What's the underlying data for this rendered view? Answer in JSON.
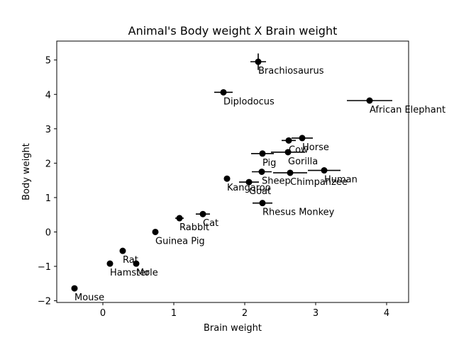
{
  "chart_data": {
    "type": "scatter",
    "title": "Animal's Body weight X Brain weight",
    "xlabel": "Brain weight",
    "ylabel": "Body weight",
    "xlim": [
      -0.65,
      4.31
    ],
    "ylim": [
      -2.05,
      5.55
    ],
    "xticks": [
      0,
      1,
      2,
      3,
      4
    ],
    "yticks": [
      -2,
      -1,
      0,
      1,
      2,
      3,
      4,
      5
    ],
    "grid": false,
    "marker_color": "#000000",
    "points": [
      {
        "label": "Brachiosaurus",
        "x": 2.19,
        "y": 4.95,
        "xerr": 0.11,
        "yerr": 0.24
      },
      {
        "label": "Diplodocus",
        "x": 1.7,
        "y": 4.06,
        "xerr": 0.13,
        "yerr": 0.08
      },
      {
        "label": "African Elephant",
        "x": 3.76,
        "y": 3.82,
        "xerr": 0.32,
        "yerr": 0.06
      },
      {
        "label": "Horse",
        "x": 2.81,
        "y": 2.73,
        "xerr": 0.15,
        "yerr": 0.05
      },
      {
        "label": "Cow",
        "x": 2.62,
        "y": 2.66,
        "xerr": 0.1,
        "yerr": 0.05
      },
      {
        "label": "Pig",
        "x": 2.25,
        "y": 2.28,
        "xerr": 0.16,
        "yerr": 0.03
      },
      {
        "label": "Gorilla",
        "x": 2.61,
        "y": 2.32,
        "xerr": 0.24,
        "yerr": 0.03
      },
      {
        "label": "Sheep",
        "x": 2.24,
        "y": 1.75,
        "xerr": 0.14,
        "yerr": 0.03
      },
      {
        "label": "Chimpanzee",
        "x": 2.64,
        "y": 1.72,
        "xerr": 0.24,
        "yerr": 0.03
      },
      {
        "label": "Human",
        "x": 3.12,
        "y": 1.79,
        "xerr": 0.23,
        "yerr": 0.03
      },
      {
        "label": "Kangaroo",
        "x": 1.75,
        "y": 1.55,
        "xerr": 0.03,
        "yerr": 0.03
      },
      {
        "label": "Goat",
        "x": 2.06,
        "y": 1.45,
        "xerr": 0.14,
        "yerr": 0.03
      },
      {
        "label": "Rhesus Monkey",
        "x": 2.25,
        "y": 0.84,
        "xerr": 0.14,
        "yerr": 0.03
      },
      {
        "label": "Rabbit",
        "x": 1.08,
        "y": 0.4,
        "xerr": 0.06,
        "yerr": 0.03
      },
      {
        "label": "Cat",
        "x": 1.41,
        "y": 0.52,
        "xerr": 0.1,
        "yerr": 0.03
      },
      {
        "label": "Guinea Pig",
        "x": 0.74,
        "y": 0.0,
        "xerr": 0.0,
        "yerr": 0.0
      },
      {
        "label": "Rat",
        "x": 0.28,
        "y": -0.55,
        "xerr": 0.0,
        "yerr": 0.0
      },
      {
        "label": "Hamster",
        "x": 0.1,
        "y": -0.92,
        "xerr": 0.0,
        "yerr": 0.0
      },
      {
        "label": "Mole",
        "x": 0.47,
        "y": -0.92,
        "xerr": 0.0,
        "yerr": 0.0
      },
      {
        "label": "Mouse",
        "x": -0.4,
        "y": -1.64,
        "xerr": 0.0,
        "yerr": 0.0
      }
    ]
  }
}
